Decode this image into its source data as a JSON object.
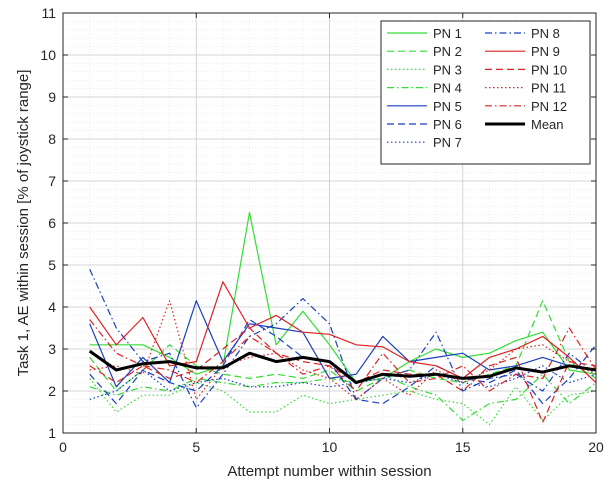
{
  "chart_data": {
    "type": "line",
    "title": "",
    "xlabel": "Attempt number within session",
    "ylabel": "Task 1, AE within session [% of joystick range]",
    "xlim": [
      0,
      20
    ],
    "ylim": [
      1,
      11
    ],
    "xticks": [
      0,
      5,
      10,
      15,
      20
    ],
    "yticks": [
      1,
      2,
      3,
      4,
      5,
      6,
      7,
      8,
      9,
      10,
      11
    ],
    "grid": "major and minor, dotted",
    "legend_position": "top-right",
    "x": [
      1,
      2,
      3,
      4,
      5,
      6,
      7,
      8,
      9,
      10,
      11,
      12,
      13,
      14,
      15,
      16,
      17,
      18,
      19,
      20
    ],
    "series": [
      {
        "name": "PN 1",
        "color": "#33dd33",
        "dash": "solid",
        "values": [
          3.1,
          3.1,
          3.1,
          2.8,
          2.4,
          2.6,
          6.25,
          3.1,
          3.9,
          3.1,
          2.2,
          2.3,
          2.7,
          3.0,
          2.8,
          2.9,
          3.2,
          3.4,
          2.5,
          2.4
        ]
      },
      {
        "name": "PN 2",
        "color": "#33dd33",
        "dash": "dashed",
        "values": [
          2.8,
          2.0,
          2.5,
          3.1,
          2.6,
          2.4,
          2.3,
          2.4,
          2.3,
          2.5,
          2.0,
          2.3,
          2.5,
          2.3,
          2.2,
          2.4,
          2.6,
          4.15,
          2.7,
          2.3
        ]
      },
      {
        "name": "PN 3",
        "color": "#33dd33",
        "dash": "dotted",
        "values": [
          2.3,
          1.5,
          1.9,
          1.9,
          2.2,
          2.0,
          1.5,
          1.5,
          1.9,
          1.7,
          1.8,
          1.9,
          2.0,
          1.8,
          1.7,
          1.2,
          2.1,
          1.3,
          1.9,
          2.0
        ]
      },
      {
        "name": "PN 4",
        "color": "#33dd33",
        "dash": "dashdot",
        "values": [
          2.1,
          1.9,
          2.1,
          2.0,
          2.3,
          2.2,
          2.1,
          2.2,
          2.2,
          2.3,
          2.2,
          2.4,
          2.1,
          1.9,
          1.3,
          1.7,
          1.8,
          2.4,
          1.7,
          2.2
        ]
      },
      {
        "name": "PN 5",
        "color": "#1a3fbf",
        "dash": "solid",
        "values": [
          3.6,
          2.1,
          2.8,
          2.2,
          4.15,
          2.7,
          3.6,
          3.5,
          3.4,
          2.3,
          2.4,
          3.3,
          2.7,
          2.8,
          2.9,
          2.5,
          2.6,
          2.8,
          2.6,
          2.5
        ]
      },
      {
        "name": "PN 6",
        "color": "#1a3fbf",
        "dash": "dashed",
        "values": [
          2.4,
          1.7,
          2.5,
          2.2,
          2.0,
          2.6,
          3.7,
          3.3,
          2.8,
          2.7,
          1.8,
          1.7,
          2.1,
          2.6,
          2.3,
          2.2,
          2.5,
          1.7,
          2.3,
          3.1
        ]
      },
      {
        "name": "PN 7",
        "color": "#1a3fbf",
        "dash": "dotted",
        "values": [
          1.8,
          2.0,
          2.5,
          2.0,
          2.2,
          2.3,
          2.1,
          2.1,
          2.2,
          2.1,
          2.2,
          2.3,
          2.2,
          2.4,
          2.2,
          2.1,
          2.3,
          2.6,
          2.2,
          2.4
        ]
      },
      {
        "name": "PN 8",
        "color": "#1a3fbf",
        "dash": "dashdot",
        "values": [
          4.9,
          3.5,
          2.7,
          2.9,
          1.6,
          2.4,
          3.3,
          3.6,
          4.2,
          3.6,
          1.8,
          2.3,
          2.5,
          3.4,
          2.0,
          2.3,
          2.4,
          2.0,
          2.9,
          2.4
        ]
      },
      {
        "name": "PN 9",
        "color": "#dd2222",
        "dash": "solid",
        "values": [
          4.0,
          3.1,
          3.75,
          2.6,
          2.7,
          4.6,
          3.5,
          3.8,
          3.4,
          3.35,
          3.1,
          3.05,
          2.7,
          2.6,
          2.3,
          2.8,
          3.0,
          3.3,
          2.8,
          2.2
        ]
      },
      {
        "name": "PN 10",
        "color": "#dd2222",
        "dash": "dashed",
        "values": [
          2.6,
          2.2,
          2.6,
          2.3,
          2.5,
          3.0,
          3.5,
          2.9,
          2.7,
          2.6,
          2.2,
          2.5,
          2.4,
          2.4,
          2.0,
          2.6,
          2.8,
          1.25,
          2.7,
          2.6
        ]
      },
      {
        "name": "PN 11",
        "color": "#dd2222",
        "dash": "dotted",
        "values": [
          2.5,
          2.6,
          2.4,
          4.15,
          1.8,
          2.6,
          2.8,
          2.9,
          2.5,
          2.3,
          1.8,
          2.3,
          1.9,
          2.5,
          2.2,
          2.5,
          3.0,
          3.1,
          2.7,
          2.4
        ]
      },
      {
        "name": "PN 12",
        "color": "#dd2222",
        "dash": "dashdot",
        "values": [
          3.7,
          2.9,
          2.6,
          2.5,
          2.2,
          2.7,
          3.3,
          2.9,
          2.4,
          2.6,
          2.0,
          2.9,
          2.2,
          2.3,
          2.6,
          2.0,
          2.4,
          2.3,
          3.5,
          2.5
        ]
      },
      {
        "name": "Mean",
        "color": "#000000",
        "dash": "solid",
        "width": 3,
        "values": [
          2.95,
          2.5,
          2.65,
          2.7,
          2.55,
          2.55,
          2.9,
          2.7,
          2.8,
          2.7,
          2.2,
          2.4,
          2.35,
          2.4,
          2.3,
          2.35,
          2.55,
          2.45,
          2.6,
          2.5
        ]
      }
    ]
  }
}
